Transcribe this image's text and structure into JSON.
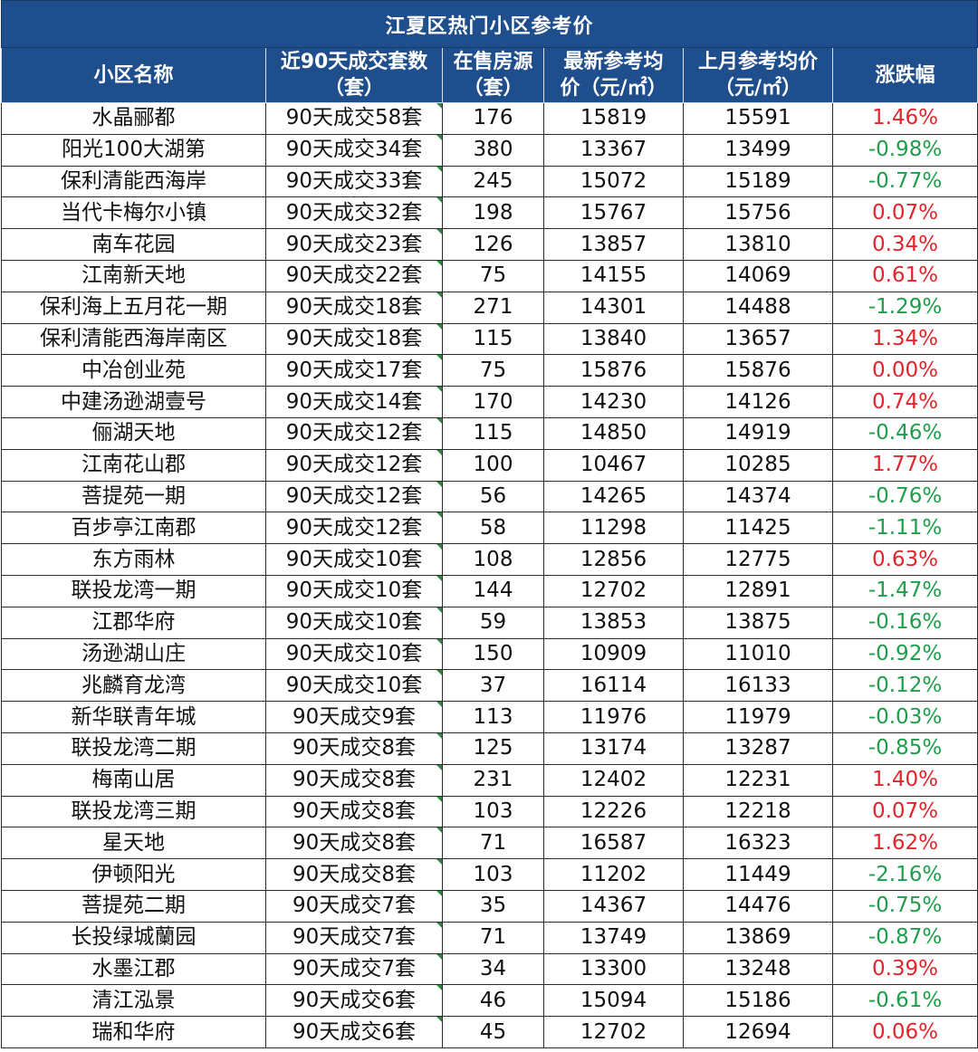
{
  "title": "江夏区热门小区参考价",
  "headers": {
    "name": "小区名称",
    "volume": [
      "近90天成交套数",
      "（套）"
    ],
    "listings": [
      "在售房源",
      "（套）"
    ],
    "latest_price": [
      "最新参考均",
      "价（元/㎡）"
    ],
    "last_month_price": [
      "上月参考均价",
      "（元/㎡）"
    ],
    "change": "涨跌幅"
  },
  "colors": {
    "header_bg": "#1f4e8c",
    "rise": "#e0262c",
    "fall": "#1e9e4a"
  },
  "rows": [
    {
      "name": "水晶郦都",
      "volume": "90天成交58套",
      "listings": "176",
      "latest_price": "15819",
      "last_month_price": "15591",
      "change": "1.46%",
      "dir": "up"
    },
    {
      "name": "阳光100大湖第",
      "volume": "90天成交34套",
      "listings": "380",
      "latest_price": "13367",
      "last_month_price": "13499",
      "change": "-0.98%",
      "dir": "down"
    },
    {
      "name": "保利清能西海岸",
      "volume": "90天成交33套",
      "listings": "245",
      "latest_price": "15072",
      "last_month_price": "15189",
      "change": "-0.77%",
      "dir": "down"
    },
    {
      "name": "当代卡梅尔小镇",
      "volume": "90天成交32套",
      "listings": "198",
      "latest_price": "15767",
      "last_month_price": "15756",
      "change": "0.07%",
      "dir": "up"
    },
    {
      "name": "南车花园",
      "volume": "90天成交23套",
      "listings": "126",
      "latest_price": "13857",
      "last_month_price": "13810",
      "change": "0.34%",
      "dir": "up"
    },
    {
      "name": "江南新天地",
      "volume": "90天成交22套",
      "listings": "75",
      "latest_price": "14155",
      "last_month_price": "14069",
      "change": "0.61%",
      "dir": "up"
    },
    {
      "name": "保利海上五月花一期",
      "volume": "90天成交18套",
      "listings": "271",
      "latest_price": "14301",
      "last_month_price": "14488",
      "change": "-1.29%",
      "dir": "down"
    },
    {
      "name": "保利清能西海岸南区",
      "volume": "90天成交18套",
      "listings": "115",
      "latest_price": "13840",
      "last_month_price": "13657",
      "change": "1.34%",
      "dir": "up"
    },
    {
      "name": "中冶创业苑",
      "volume": "90天成交17套",
      "listings": "75",
      "latest_price": "15876",
      "last_month_price": "15876",
      "change": "0.00%",
      "dir": "up"
    },
    {
      "name": "中建汤逊湖壹号",
      "volume": "90天成交14套",
      "listings": "170",
      "latest_price": "14230",
      "last_month_price": "14126",
      "change": "0.74%",
      "dir": "up"
    },
    {
      "name": "俪湖天地",
      "volume": "90天成交12套",
      "listings": "115",
      "latest_price": "14850",
      "last_month_price": "14919",
      "change": "-0.46%",
      "dir": "down"
    },
    {
      "name": "江南花山郡",
      "volume": "90天成交12套",
      "listings": "100",
      "latest_price": "10467",
      "last_month_price": "10285",
      "change": "1.77%",
      "dir": "up"
    },
    {
      "name": "菩提苑一期",
      "volume": "90天成交12套",
      "listings": "56",
      "latest_price": "14265",
      "last_month_price": "14374",
      "change": "-0.76%",
      "dir": "down"
    },
    {
      "name": "百步亭江南郡",
      "volume": "90天成交12套",
      "listings": "58",
      "latest_price": "11298",
      "last_month_price": "11425",
      "change": "-1.11%",
      "dir": "down"
    },
    {
      "name": "东方雨林",
      "volume": "90天成交10套",
      "listings": "108",
      "latest_price": "12856",
      "last_month_price": "12775",
      "change": "0.63%",
      "dir": "up"
    },
    {
      "name": "联投龙湾一期",
      "volume": "90天成交10套",
      "listings": "144",
      "latest_price": "12702",
      "last_month_price": "12891",
      "change": "-1.47%",
      "dir": "down"
    },
    {
      "name": "江郡华府",
      "volume": "90天成交10套",
      "listings": "59",
      "latest_price": "13853",
      "last_month_price": "13875",
      "change": "-0.16%",
      "dir": "down"
    },
    {
      "name": "汤逊湖山庄",
      "volume": "90天成交10套",
      "listings": "150",
      "latest_price": "10909",
      "last_month_price": "11010",
      "change": "-0.92%",
      "dir": "down"
    },
    {
      "name": "兆麟育龙湾",
      "volume": "90天成交10套",
      "listings": "37",
      "latest_price": "16114",
      "last_month_price": "16133",
      "change": "-0.12%",
      "dir": "down"
    },
    {
      "name": "新华联青年城",
      "volume": "90天成交9套",
      "listings": "113",
      "latest_price": "11976",
      "last_month_price": "11979",
      "change": "-0.03%",
      "dir": "down"
    },
    {
      "name": "联投龙湾二期",
      "volume": "90天成交8套",
      "listings": "125",
      "latest_price": "13174",
      "last_month_price": "13287",
      "change": "-0.85%",
      "dir": "down"
    },
    {
      "name": "梅南山居",
      "volume": "90天成交8套",
      "listings": "231",
      "latest_price": "12402",
      "last_month_price": "12231",
      "change": "1.40%",
      "dir": "up"
    },
    {
      "name": "联投龙湾三期",
      "volume": "90天成交8套",
      "listings": "103",
      "latest_price": "12226",
      "last_month_price": "12218",
      "change": "0.07%",
      "dir": "up"
    },
    {
      "name": "星天地",
      "volume": "90天成交8套",
      "listings": "71",
      "latest_price": "16587",
      "last_month_price": "16323",
      "change": "1.62%",
      "dir": "up"
    },
    {
      "name": "伊顿阳光",
      "volume": "90天成交8套",
      "listings": "103",
      "latest_price": "11202",
      "last_month_price": "11449",
      "change": "-2.16%",
      "dir": "down"
    },
    {
      "name": "菩提苑二期",
      "volume": "90天成交7套",
      "listings": "35",
      "latest_price": "14367",
      "last_month_price": "14476",
      "change": "-0.75%",
      "dir": "down"
    },
    {
      "name": "长投绿城蘭园",
      "volume": "90天成交7套",
      "listings": "71",
      "latest_price": "13749",
      "last_month_price": "13869",
      "change": "-0.87%",
      "dir": "down"
    },
    {
      "name": "水墨江郡",
      "volume": "90天成交7套",
      "listings": "34",
      "latest_price": "13300",
      "last_month_price": "13248",
      "change": "0.39%",
      "dir": "up"
    },
    {
      "name": "清江泓景",
      "volume": "90天成交6套",
      "listings": "46",
      "latest_price": "15094",
      "last_month_price": "15186",
      "change": "-0.61%",
      "dir": "down"
    },
    {
      "name": "瑞和华府",
      "volume": "90天成交6套",
      "listings": "45",
      "latest_price": "12702",
      "last_month_price": "12694",
      "change": "0.06%",
      "dir": "up"
    }
  ]
}
